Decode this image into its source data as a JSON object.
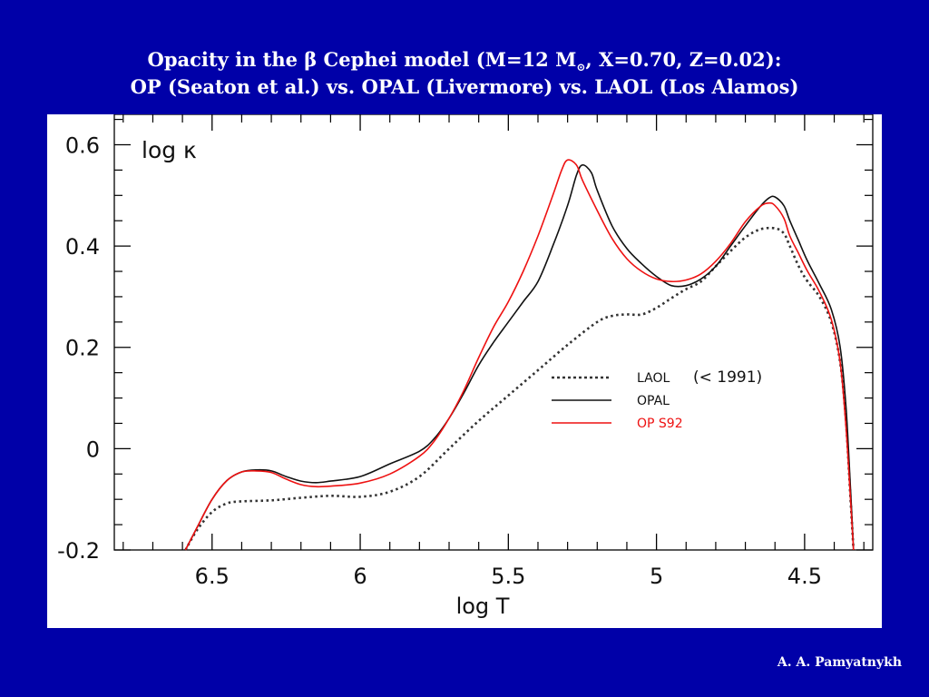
{
  "slide": {
    "title_line1_before": "Opacity in the ",
    "title_beta": "β",
    "title_line1_mid": " Cephei model (M=12 M",
    "title_sun_symbol": "⊙",
    "title_line1_after": ", X=0.70, Z=0.02):",
    "title_line2": "OP (Seaton et al.) vs. OPAL (Livermore) vs. LAOL (Los Alamos)",
    "author": "A. A. Pamyatnykh",
    "background_color": "#0000a8"
  },
  "chart_data": {
    "type": "line",
    "xlabel": "log T",
    "ylabel": "log κ",
    "xlim": [
      6.83,
      4.27
    ],
    "ylim": [
      -0.2,
      0.66
    ],
    "x_ticks": [
      "6.5",
      "6",
      "5.5",
      "5",
      "4.5"
    ],
    "y_ticks": [
      "0.6",
      "0.4",
      "0.2",
      "0",
      "-0.2"
    ],
    "legend_note": "(< 1991)",
    "legend_position": "center-right",
    "series": [
      {
        "name": "LAOL",
        "color": "#333333",
        "style": "dotted",
        "points": [
          [
            6.59,
            -0.2
          ],
          [
            6.55,
            -0.16
          ],
          [
            6.5,
            -0.125
          ],
          [
            6.45,
            -0.108
          ],
          [
            6.4,
            -0.104
          ],
          [
            6.3,
            -0.102
          ],
          [
            6.2,
            -0.097
          ],
          [
            6.1,
            -0.093
          ],
          [
            6.0,
            -0.095
          ],
          [
            5.9,
            -0.085
          ],
          [
            5.8,
            -0.055
          ],
          [
            5.7,
            0.0
          ],
          [
            5.6,
            0.055
          ],
          [
            5.5,
            0.105
          ],
          [
            5.4,
            0.155
          ],
          [
            5.3,
            0.205
          ],
          [
            5.2,
            0.25
          ],
          [
            5.15,
            0.262
          ],
          [
            5.1,
            0.265
          ],
          [
            5.05,
            0.265
          ],
          [
            5.0,
            0.278
          ],
          [
            4.95,
            0.297
          ],
          [
            4.9,
            0.315
          ],
          [
            4.85,
            0.33
          ],
          [
            4.8,
            0.36
          ],
          [
            4.75,
            0.39
          ],
          [
            4.7,
            0.417
          ],
          [
            4.65,
            0.433
          ],
          [
            4.6,
            0.435
          ],
          [
            4.57,
            0.425
          ],
          [
            4.55,
            0.4
          ],
          [
            4.52,
            0.36
          ],
          [
            4.49,
            0.33
          ],
          [
            4.45,
            0.3
          ],
          [
            4.41,
            0.25
          ],
          [
            4.38,
            0.17
          ],
          [
            4.36,
            0.05
          ],
          [
            4.345,
            -0.1
          ],
          [
            4.335,
            -0.2
          ]
        ]
      },
      {
        "name": "OPAL",
        "color": "#111111",
        "style": "solid",
        "points": [
          [
            6.59,
            -0.2
          ],
          [
            6.55,
            -0.155
          ],
          [
            6.5,
            -0.1
          ],
          [
            6.45,
            -0.063
          ],
          [
            6.4,
            -0.046
          ],
          [
            6.35,
            -0.042
          ],
          [
            6.3,
            -0.044
          ],
          [
            6.25,
            -0.055
          ],
          [
            6.2,
            -0.064
          ],
          [
            6.15,
            -0.067
          ],
          [
            6.1,
            -0.064
          ],
          [
            6.0,
            -0.055
          ],
          [
            5.9,
            -0.03
          ],
          [
            5.8,
            -0.005
          ],
          [
            5.75,
            0.02
          ],
          [
            5.7,
            0.06
          ],
          [
            5.65,
            0.11
          ],
          [
            5.6,
            0.165
          ],
          [
            5.55,
            0.21
          ],
          [
            5.5,
            0.25
          ],
          [
            5.45,
            0.29
          ],
          [
            5.4,
            0.33
          ],
          [
            5.35,
            0.4
          ],
          [
            5.3,
            0.48
          ],
          [
            5.27,
            0.54
          ],
          [
            5.25,
            0.56
          ],
          [
            5.22,
            0.545
          ],
          [
            5.2,
            0.51
          ],
          [
            5.15,
            0.44
          ],
          [
            5.1,
            0.395
          ],
          [
            5.05,
            0.365
          ],
          [
            5.0,
            0.34
          ],
          [
            4.95,
            0.322
          ],
          [
            4.9,
            0.322
          ],
          [
            4.85,
            0.335
          ],
          [
            4.8,
            0.36
          ],
          [
            4.75,
            0.4
          ],
          [
            4.7,
            0.44
          ],
          [
            4.65,
            0.478
          ],
          [
            4.62,
            0.495
          ],
          [
            4.6,
            0.497
          ],
          [
            4.57,
            0.48
          ],
          [
            4.55,
            0.45
          ],
          [
            4.52,
            0.41
          ],
          [
            4.49,
            0.37
          ],
          [
            4.45,
            0.325
          ],
          [
            4.41,
            0.275
          ],
          [
            4.38,
            0.2
          ],
          [
            4.36,
            0.08
          ],
          [
            4.345,
            -0.08
          ],
          [
            4.335,
            -0.2
          ]
        ]
      },
      {
        "name": "OP S92",
        "color": "#ee1111",
        "style": "solid",
        "points": [
          [
            6.59,
            -0.2
          ],
          [
            6.55,
            -0.155
          ],
          [
            6.5,
            -0.1
          ],
          [
            6.45,
            -0.063
          ],
          [
            6.4,
            -0.046
          ],
          [
            6.35,
            -0.044
          ],
          [
            6.3,
            -0.047
          ],
          [
            6.25,
            -0.06
          ],
          [
            6.2,
            -0.071
          ],
          [
            6.15,
            -0.075
          ],
          [
            6.1,
            -0.074
          ],
          [
            6.0,
            -0.068
          ],
          [
            5.9,
            -0.05
          ],
          [
            5.8,
            -0.015
          ],
          [
            5.75,
            0.015
          ],
          [
            5.7,
            0.06
          ],
          [
            5.65,
            0.115
          ],
          [
            5.6,
            0.18
          ],
          [
            5.55,
            0.24
          ],
          [
            5.5,
            0.29
          ],
          [
            5.45,
            0.35
          ],
          [
            5.4,
            0.42
          ],
          [
            5.35,
            0.5
          ],
          [
            5.32,
            0.55
          ],
          [
            5.3,
            0.57
          ],
          [
            5.27,
            0.56
          ],
          [
            5.25,
            0.53
          ],
          [
            5.2,
            0.47
          ],
          [
            5.15,
            0.415
          ],
          [
            5.1,
            0.375
          ],
          [
            5.05,
            0.35
          ],
          [
            5.0,
            0.335
          ],
          [
            4.95,
            0.33
          ],
          [
            4.9,
            0.333
          ],
          [
            4.85,
            0.345
          ],
          [
            4.8,
            0.37
          ],
          [
            4.75,
            0.405
          ],
          [
            4.7,
            0.448
          ],
          [
            4.65,
            0.478
          ],
          [
            4.62,
            0.485
          ],
          [
            4.6,
            0.48
          ],
          [
            4.57,
            0.455
          ],
          [
            4.55,
            0.42
          ],
          [
            4.52,
            0.385
          ],
          [
            4.49,
            0.35
          ],
          [
            4.45,
            0.31
          ],
          [
            4.41,
            0.255
          ],
          [
            4.38,
            0.17
          ],
          [
            4.36,
            0.04
          ],
          [
            4.345,
            -0.1
          ],
          [
            4.335,
            -0.2
          ]
        ]
      }
    ]
  }
}
